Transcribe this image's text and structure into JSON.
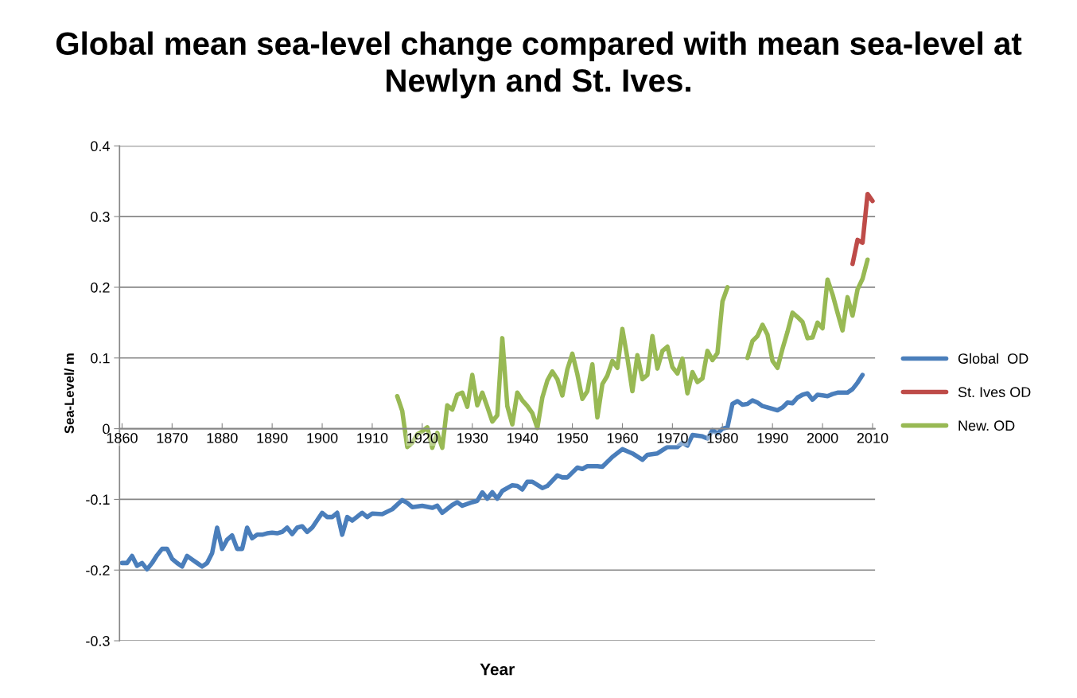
{
  "chart_data": {
    "type": "line",
    "title": "Global mean sea-level change compared with mean sea-level at Newlyn and St. Ives.",
    "xlabel": "Year",
    "ylabel": "Sea-Level/ m",
    "xlim": [
      1859.5,
      2010.5
    ],
    "xticks": [
      1860,
      1870,
      1880,
      1890,
      1900,
      1910,
      1920,
      1930,
      1940,
      1950,
      1960,
      1970,
      1980,
      1990,
      2000,
      2010
    ],
    "ylim": [
      -0.3,
      0.4
    ],
    "yticks": [
      -0.3,
      -0.2,
      -0.1,
      0,
      0.1,
      0.2,
      0.3,
      0.4
    ],
    "grid": "y",
    "legend": "right",
    "marker": "none",
    "line_style": "solid",
    "series": [
      {
        "name": "Global  OD",
        "color": "#4a7ebb",
        "x": [
          1860,
          1861,
          1862,
          1863,
          1864,
          1865,
          1866,
          1867,
          1868,
          1869,
          1870,
          1871,
          1872,
          1873,
          1874,
          1875,
          1876,
          1877,
          1878,
          1879,
          1880,
          1881,
          1882,
          1883,
          1884,
          1885,
          1886,
          1887,
          1888,
          1889,
          1890,
          1891,
          1892,
          1893,
          1894,
          1895,
          1896,
          1897,
          1898,
          1900,
          1901,
          1902,
          1903,
          1904,
          1905,
          1906,
          1908,
          1909,
          1910,
          1912,
          1914,
          1916,
          1917,
          1918,
          1920,
          1922,
          1923,
          1924,
          1926,
          1927,
          1928,
          1930,
          1931,
          1932,
          1933,
          1934,
          1935,
          1936,
          1938,
          1939,
          1940,
          1941,
          1942,
          1944,
          1945,
          1947,
          1948,
          1949,
          1951,
          1952,
          1953,
          1955,
          1956,
          1958,
          1960,
          1962,
          1964,
          1965,
          1967,
          1969,
          1971,
          1972,
          1973,
          1974,
          1976,
          1977,
          1978,
          1979,
          1980,
          1981,
          1982,
          1983,
          1984,
          1985,
          1986,
          1987,
          1988,
          1991,
          1992,
          1993,
          1994,
          1995,
          1996,
          1997,
          1998,
          1999,
          2000,
          2001,
          2002,
          2003,
          2005,
          2006,
          2007,
          2008
        ],
        "values": [
          -0.19,
          -0.19,
          -0.18,
          -0.194,
          -0.19,
          -0.199,
          -0.19,
          -0.179,
          -0.17,
          -0.17,
          -0.184,
          -0.19,
          -0.195,
          -0.18,
          -0.185,
          -0.19,
          -0.195,
          -0.19,
          -0.176,
          -0.14,
          -0.17,
          -0.157,
          -0.151,
          -0.17,
          -0.17,
          -0.14,
          -0.155,
          -0.15,
          -0.15,
          -0.148,
          -0.147,
          -0.148,
          -0.146,
          -0.14,
          -0.149,
          -0.14,
          -0.138,
          -0.146,
          -0.14,
          -0.119,
          -0.125,
          -0.125,
          -0.119,
          -0.15,
          -0.125,
          -0.13,
          -0.119,
          -0.125,
          -0.12,
          -0.121,
          -0.114,
          -0.101,
          -0.105,
          -0.111,
          -0.109,
          -0.112,
          -0.109,
          -0.119,
          -0.108,
          -0.104,
          -0.109,
          -0.104,
          -0.102,
          -0.09,
          -0.099,
          -0.09,
          -0.099,
          -0.088,
          -0.08,
          -0.081,
          -0.086,
          -0.075,
          -0.075,
          -0.084,
          -0.081,
          -0.066,
          -0.069,
          -0.069,
          -0.055,
          -0.057,
          -0.053,
          -0.053,
          -0.054,
          -0.04,
          -0.029,
          -0.035,
          -0.044,
          -0.037,
          -0.035,
          -0.026,
          -0.026,
          -0.02,
          -0.024,
          -0.009,
          -0.011,
          -0.014,
          -0.002,
          -0.007,
          0.0,
          0.002,
          0.035,
          0.039,
          0.034,
          0.035,
          0.04,
          0.037,
          0.032,
          0.026,
          0.03,
          0.037,
          0.036,
          0.044,
          0.048,
          0.05,
          0.041,
          0.048,
          0.047,
          0.046,
          0.049,
          0.051,
          0.051,
          0.056,
          0.065,
          0.076
        ]
      },
      {
        "name": "St. Ives OD",
        "color": "#be4b48",
        "x": [
          2006,
          2007,
          2008,
          2009,
          2010
        ],
        "values": [
          0.233,
          0.267,
          0.263,
          0.332,
          0.322
        ]
      },
      {
        "name": "New. OD",
        "color": "#98b954",
        "x": [
          1915,
          1916,
          1917,
          1918,
          1919,
          1920,
          1921,
          1922,
          1923,
          1924,
          1925,
          1926,
          1927,
          1928,
          1929,
          1930,
          1931,
          1932,
          1933,
          1934,
          1935,
          1936,
          1937,
          1938,
          1939,
          1940,
          1941,
          1942,
          1943,
          1944,
          1945,
          1946,
          1947,
          1948,
          1949,
          1950,
          1951,
          1952,
          1953,
          1954,
          1955,
          1956,
          1957,
          1958,
          1959,
          1960,
          1961,
          1962,
          1963,
          1964,
          1965,
          1966,
          1967,
          1968,
          1969,
          1970,
          1971,
          1972,
          1973,
          1974,
          1975,
          1976,
          1977,
          1978,
          1979,
          1980,
          1981,
          1982,
          1985,
          1986,
          1987,
          1988,
          1989,
          1990,
          1991,
          1992,
          1993,
          1994,
          1995,
          1996,
          1997,
          1998,
          1999,
          2000,
          2001,
          2002,
          2003,
          2004,
          2005,
          2006,
          2007,
          2008,
          2009
        ],
        "values": [
          0.046,
          0.025,
          -0.026,
          -0.02,
          -0.008,
          -0.004,
          0.002,
          -0.027,
          -0.006,
          -0.027,
          0.033,
          0.027,
          0.048,
          0.051,
          0.031,
          0.076,
          0.033,
          0.051,
          0.031,
          0.01,
          0.019,
          0.128,
          0.032,
          0.006,
          0.051,
          0.04,
          0.032,
          0.022,
          0.001,
          0.044,
          0.068,
          0.081,
          0.07,
          0.047,
          0.084,
          0.106,
          0.077,
          0.042,
          0.053,
          0.091,
          0.016,
          0.063,
          0.075,
          0.096,
          0.086,
          0.141,
          0.1,
          0.053,
          0.104,
          0.07,
          0.076,
          0.131,
          0.085,
          0.11,
          0.116,
          0.087,
          0.078,
          0.099,
          0.05,
          0.08,
          0.066,
          0.071,
          0.11,
          0.097,
          0.107,
          0.18,
          0.2,
          null,
          0.1,
          0.124,
          0.131,
          0.147,
          0.133,
          0.096,
          0.086,
          0.113,
          0.137,
          0.164,
          0.158,
          0.151,
          0.128,
          0.129,
          0.15,
          0.142,
          0.211,
          0.19,
          0.164,
          0.139,
          0.186,
          0.16,
          0.197,
          0.212,
          0.239
        ]
      }
    ]
  }
}
